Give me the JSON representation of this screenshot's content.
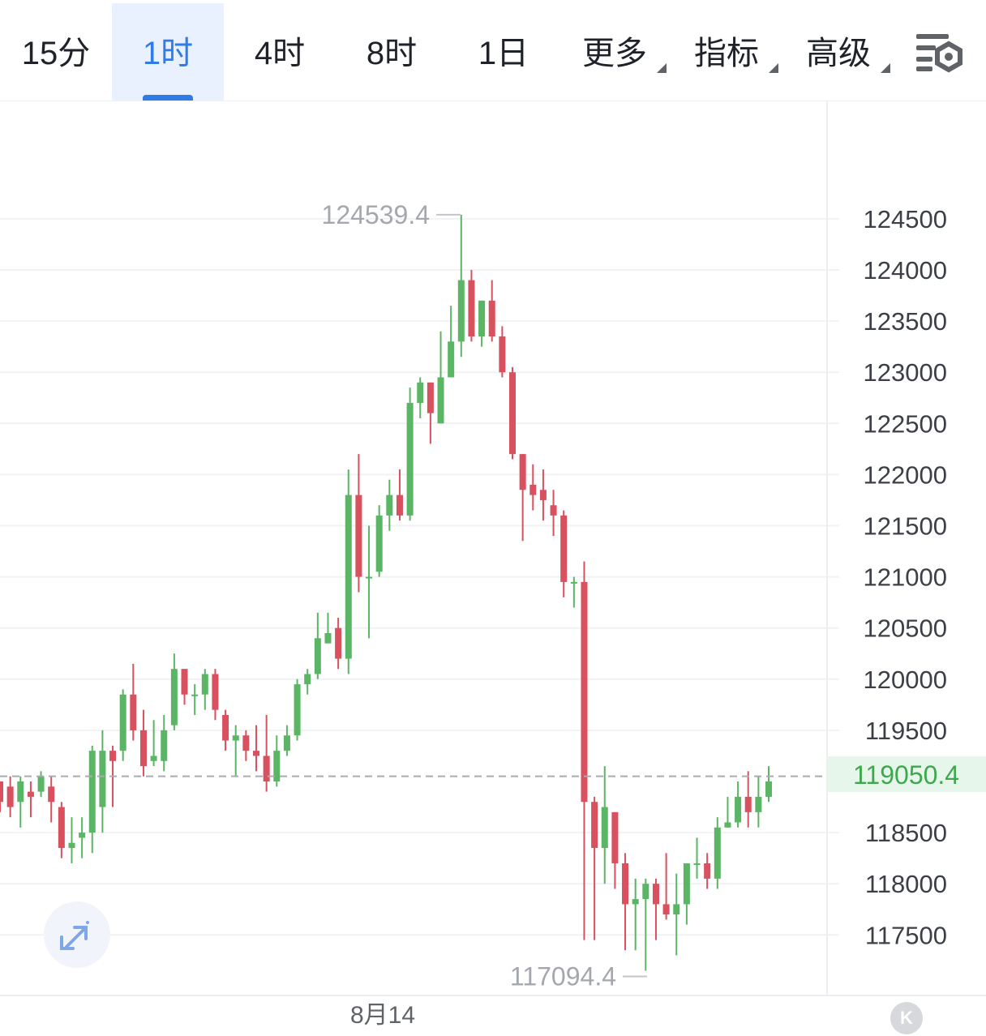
{
  "toolbar": {
    "tabs": [
      {
        "label": "15分",
        "active": false
      },
      {
        "label": "1时",
        "active": true
      },
      {
        "label": "4时",
        "active": false
      },
      {
        "label": "8时",
        "active": false
      },
      {
        "label": "1日",
        "active": false
      }
    ],
    "dropdowns": [
      {
        "label": "更多"
      },
      {
        "label": "指标"
      },
      {
        "label": "高级"
      }
    ],
    "settings_icon": "chart-settings-icon",
    "accent_color": "#2f7ce8"
  },
  "chart_data": {
    "type": "candlestick",
    "interval": "1时",
    "y_ticks": [
      "124500",
      "124000",
      "123500",
      "123000",
      "122500",
      "122000",
      "121500",
      "121000",
      "120500",
      "120000",
      "119500",
      "119050.4",
      "118500",
      "118000",
      "117500"
    ],
    "ylim": [
      117000,
      125200
    ],
    "x_tick_label": "8月14",
    "current_price": "119050.4",
    "high_label": "124539.4",
    "low_label": "117094.4",
    "colors": {
      "up": "#5ab564",
      "down": "#d9505e"
    },
    "candles": [
      [
        119000,
        118800,
        119000,
        118700
      ],
      [
        118950,
        118750,
        119050,
        118650
      ],
      [
        118800,
        119000,
        119050,
        118550
      ],
      [
        118900,
        118850,
        119000,
        118650
      ],
      [
        118900,
        119050,
        119100,
        118850
      ],
      [
        118950,
        118800,
        119050,
        118600
      ],
      [
        118750,
        118350,
        118800,
        118250
      ],
      [
        118350,
        118400,
        118650,
        118200
      ],
      [
        118450,
        118500,
        118650,
        118250
      ],
      [
        118500,
        119300,
        119350,
        118300
      ],
      [
        118750,
        119300,
        119500,
        118500
      ],
      [
        119300,
        119200,
        119350,
        118750
      ],
      [
        119300,
        119850,
        119900,
        119200
      ],
      [
        119850,
        119500,
        120150,
        119400
      ],
      [
        119500,
        119150,
        119700,
        119050
      ],
      [
        119200,
        119250,
        119600,
        119150
      ],
      [
        119200,
        119500,
        119650,
        119100
      ],
      [
        119550,
        120100,
        120250,
        119500
      ],
      [
        120100,
        119850,
        120100,
        119750
      ],
      [
        119850,
        119850,
        119950,
        119650
      ],
      [
        119850,
        120050,
        120100,
        119700
      ],
      [
        120050,
        119700,
        120100,
        119600
      ],
      [
        119650,
        119400,
        119700,
        119300
      ],
      [
        119400,
        119450,
        119550,
        119050
      ],
      [
        119450,
        119300,
        119500,
        119200
      ],
      [
        119300,
        119250,
        119550,
        119100
      ],
      [
        119250,
        119000,
        119650,
        118900
      ],
      [
        119000,
        119300,
        119450,
        118950
      ],
      [
        119300,
        119450,
        119550,
        119250
      ],
      [
        119450,
        119950,
        120000,
        119400
      ],
      [
        119950,
        120050,
        120100,
        119850
      ],
      [
        120050,
        120400,
        120650,
        120000
      ],
      [
        120350,
        120450,
        120650,
        120350
      ],
      [
        120500,
        120200,
        120600,
        120100
      ],
      [
        120200,
        121800,
        122050,
        120050
      ],
      [
        121800,
        121000,
        122200,
        120850
      ],
      [
        121000,
        121000,
        121500,
        120400
      ],
      [
        121050,
        121600,
        121700,
        121000
      ],
      [
        121600,
        121800,
        121950,
        121450
      ],
      [
        121800,
        121600,
        122050,
        121550
      ],
      [
        121600,
        122700,
        122850,
        121550
      ],
      [
        122700,
        122900,
        122950,
        122550
      ],
      [
        122900,
        122600,
        122900,
        122300
      ],
      [
        122500,
        122950,
        123400,
        122500
      ],
      [
        122950,
        123300,
        123650,
        122950
      ],
      [
        123300,
        123900,
        124539,
        123150
      ],
      [
        123900,
        123350,
        124000,
        123300
      ],
      [
        123350,
        123700,
        123700,
        123250
      ],
      [
        123700,
        123350,
        123900,
        123300
      ],
      [
        123350,
        123000,
        123450,
        122950
      ],
      [
        123000,
        122200,
        123050,
        122150
      ],
      [
        122200,
        121850,
        122200,
        121350
      ],
      [
        121900,
        121800,
        122100,
        121650
      ],
      [
        121850,
        121750,
        122050,
        121550
      ],
      [
        121700,
        121600,
        121850,
        121400
      ],
      [
        121600,
        120950,
        121650,
        120800
      ],
      [
        120950,
        120950,
        121000,
        120700
      ],
      [
        120950,
        118800,
        121150,
        117450
      ],
      [
        118800,
        118350,
        118850,
        117450
      ],
      [
        118350,
        118750,
        119150,
        118000
      ],
      [
        118700,
        118200,
        118700,
        117950
      ],
      [
        118200,
        117800,
        118300,
        117350
      ],
      [
        117800,
        117850,
        118050,
        117350
      ],
      [
        117850,
        118000,
        118050,
        117150
      ],
      [
        118000,
        117800,
        118050,
        117450
      ],
      [
        117800,
        117700,
        118300,
        117650
      ],
      [
        117700,
        117800,
        118100,
        117300
      ],
      [
        117800,
        118200,
        118200,
        117600
      ],
      [
        118200,
        118200,
        118450,
        118050
      ],
      [
        118200,
        118050,
        118300,
        117950
      ],
      [
        118050,
        118550,
        118650,
        117950
      ],
      [
        118550,
        118600,
        118850,
        118550
      ],
      [
        118600,
        118850,
        119000,
        118550
      ],
      [
        118850,
        118700,
        119100,
        118550
      ],
      [
        118700,
        118850,
        119050,
        118550
      ],
      [
        118850,
        119000,
        119150,
        118800
      ]
    ]
  }
}
